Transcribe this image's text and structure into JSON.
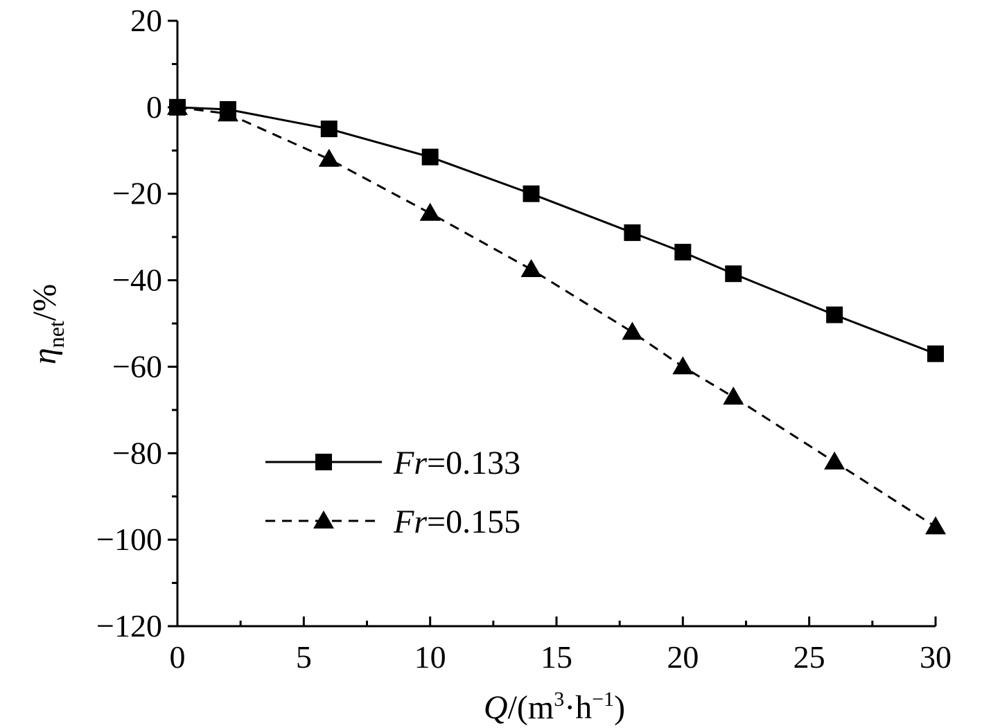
{
  "chart_data": {
    "type": "line",
    "title": "",
    "xlabel": {
      "main": "Q",
      "open": "/(m",
      "sup1": "3",
      "mid": "·h",
      "sup2": "−1",
      "close": ")"
    },
    "ylabel": {
      "main": "η",
      "sub": "net",
      "rest": "/%"
    },
    "xlim": [
      0,
      30
    ],
    "ylim": [
      -120,
      20
    ],
    "xticks": [
      0,
      5,
      10,
      15,
      20,
      25,
      30
    ],
    "yticks": [
      20,
      0,
      -20,
      -40,
      -60,
      -80,
      -100,
      -120
    ],
    "xtick_labels": [
      "0",
      "5",
      "10",
      "15",
      "20",
      "25",
      "30"
    ],
    "ytick_labels": [
      "20",
      "0",
      "−20",
      "−40",
      "−60",
      "−80",
      "−100",
      "−120"
    ],
    "grid": false,
    "legend_position": "lower-left",
    "series": [
      {
        "name": "Fr=0.133",
        "name_italic": "Fr",
        "name_value": "=0.133",
        "marker": "square",
        "line_style": "solid",
        "color": "#000000",
        "x": [
          0,
          2,
          6,
          10,
          14,
          18,
          20,
          22,
          26,
          30
        ],
        "y": [
          0,
          -0.5,
          -5,
          -11.5,
          -20,
          -29,
          -33.5,
          -38.5,
          -48,
          -57
        ]
      },
      {
        "name": "Fr=0.155",
        "name_italic": "Fr",
        "name_value": "=0.155",
        "marker": "triangle",
        "line_style": "dashed",
        "color": "#000000",
        "x": [
          0,
          2,
          6,
          10,
          14,
          18,
          20,
          22,
          26,
          30
        ],
        "y": [
          0,
          -1.5,
          -12,
          -24.5,
          -37.5,
          -52,
          -60,
          -67,
          -82,
          -97
        ]
      }
    ]
  }
}
